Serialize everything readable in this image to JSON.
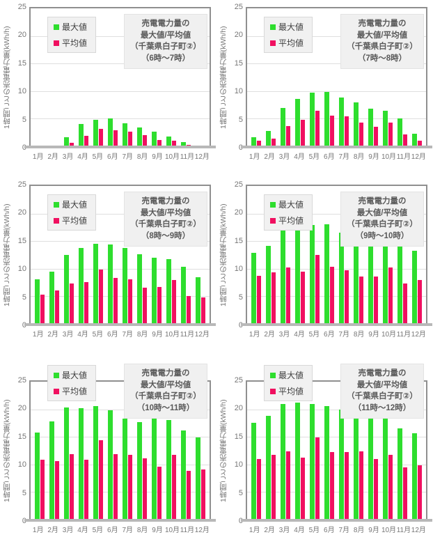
{
  "page": {
    "background": "#ffffff"
  },
  "colors": {
    "max_bar": "#2ede2e",
    "avg_bar": "#f01060",
    "gridline": "#dfdfdf",
    "plot_border": "#8f8f8f",
    "axis_baseline": "#b8b8b8",
    "tick_text": "#767676",
    "legend_text": "#3f3f3f",
    "title_text": "#595959",
    "legend_bg": "#f1f1f1",
    "title_bg": "#f0f0f0"
  },
  "legend": {
    "max_label": "最大値",
    "avg_label": "平均値"
  },
  "y_axis": {
    "title": "1時間ごとの売電電力量(kWh/h)",
    "ticks": [
      0,
      5,
      10,
      15,
      20,
      25
    ]
  },
  "chart_data": [
    {
      "type": "bar",
      "title": "売電電力量の最大値/平均値（千葉県白子町②）（6時～7時）",
      "title_lines": [
        "売電電力量の",
        "最大値/平均値",
        "（千葉県白子町②）",
        "（6時～7時）"
      ],
      "categories": [
        "1月",
        "2月",
        "3月",
        "4月",
        "5月",
        "6月",
        "7月",
        "8月",
        "9月",
        "10月",
        "11月",
        "12月"
      ],
      "series": [
        {
          "name": "最大値",
          "values": [
            0,
            0,
            1.7,
            4.0,
            4.8,
            5.0,
            4.2,
            3.4,
            2.6,
            1.8,
            0.8,
            0
          ]
        },
        {
          "name": "平均値",
          "values": [
            0,
            0,
            0.6,
            1.9,
            3.2,
            2.9,
            2.6,
            2.0,
            1.2,
            1.0,
            0.3,
            0
          ]
        }
      ],
      "ylabel": "1時間ごとの売電電力量(kWh/h)",
      "ylim": [
        0,
        25
      ],
      "grid": true,
      "legend_position": "top-left"
    },
    {
      "type": "bar",
      "title": "売電電力量の最大値/平均値（千葉県白子町②）（7時～8時）",
      "title_lines": [
        "売電電力量の",
        "最大値/平均値",
        "（千葉県白子町②）",
        "（7時～8時）"
      ],
      "categories": [
        "1月",
        "2月",
        "3月",
        "4月",
        "5月",
        "6月",
        "7月",
        "8月",
        "9月",
        "10月",
        "11月",
        "12月"
      ],
      "series": [
        {
          "name": "最大値",
          "values": [
            1.6,
            2.8,
            6.9,
            8.6,
            9.7,
            9.8,
            8.9,
            7.9,
            6.8,
            6.5,
            5.1,
            2.3
          ]
        },
        {
          "name": "平均値",
          "values": [
            1.0,
            1.4,
            3.7,
            4.8,
            6.5,
            5.6,
            5.4,
            4.3,
            3.6,
            4.3,
            2.2,
            1.0
          ]
        }
      ],
      "ylabel": "1時間ごとの売電電力量(kWh/h)",
      "ylim": [
        0,
        25
      ],
      "grid": true,
      "legend_position": "top-left"
    },
    {
      "type": "bar",
      "title": "売電電力量の最大値/平均値（千葉県白子町②）（8時～9時）",
      "title_lines": [
        "売電電力量の",
        "最大値/平均値",
        "（千葉県白子町②）",
        "（8時～9時）"
      ],
      "categories": [
        "1月",
        "2月",
        "3月",
        "4月",
        "5月",
        "6月",
        "7月",
        "8月",
        "9月",
        "10月",
        "11月",
        "12月"
      ],
      "series": [
        {
          "name": "最大値",
          "values": [
            8.1,
            9.5,
            12.5,
            13.8,
            14.5,
            14.4,
            13.8,
            12.6,
            12.0,
            11.8,
            10.3,
            8.4
          ]
        },
        {
          "name": "平均値",
          "values": [
            5.3,
            6.0,
            7.3,
            7.6,
            9.8,
            8.3,
            8.1,
            6.6,
            6.7,
            7.9,
            5.0,
            4.8
          ]
        }
      ],
      "ylabel": "1時間ごとの売電電力量(kWh/h)",
      "ylim": [
        0,
        25
      ],
      "grid": true,
      "legend_position": "top-left"
    },
    {
      "type": "bar",
      "title": "売電電力量の最大値/平均値（千葉県白子町②）（9時～10時）",
      "title_lines": [
        "売電電力量の",
        "最大値/平均値",
        "（千葉県白子町②）",
        "（9時～10時）"
      ],
      "categories": [
        "1月",
        "2月",
        "3月",
        "4月",
        "5月",
        "6月",
        "7月",
        "8月",
        "9月",
        "10月",
        "11月",
        "12月"
      ],
      "series": [
        {
          "name": "最大値",
          "values": [
            12.9,
            14.1,
            17.2,
            17.9,
            17.9,
            18.1,
            16.5,
            15.4,
            16.4,
            16.2,
            14.2,
            13.2
          ]
        },
        {
          "name": "平均値",
          "values": [
            8.7,
            9.4,
            10.2,
            9.5,
            12.5,
            10.3,
            9.7,
            8.6,
            8.6,
            10.2,
            7.3,
            7.9
          ]
        }
      ],
      "ylabel": "1時間ごとの売電電力量(kWh/h)",
      "ylim": [
        0,
        25
      ],
      "grid": true,
      "legend_position": "top-left"
    },
    {
      "type": "bar",
      "title": "売電電力量の最大値/平均値（千葉県白子町②）（10時～11時）",
      "title_lines": [
        "売電電力量の",
        "最大値/平均値",
        "（千葉県白子町②）",
        "（10時～11時）"
      ],
      "categories": [
        "1月",
        "2月",
        "3月",
        "4月",
        "5月",
        "6月",
        "7月",
        "8月",
        "9月",
        "10月",
        "11月",
        "12月"
      ],
      "series": [
        {
          "name": "最大値",
          "values": [
            15.8,
            17.8,
            20.3,
            20.2,
            20.6,
            19.8,
            18.3,
            17.7,
            18.5,
            18.1,
            16.2,
            14.9
          ]
        },
        {
          "name": "平均値",
          "values": [
            10.8,
            10.6,
            11.9,
            10.8,
            14.4,
            11.9,
            11.7,
            11.1,
            9.6,
            11.8,
            8.8,
            9.1
          ]
        }
      ],
      "ylabel": "1時間ごとの売電電力量(kWh/h)",
      "ylim": [
        0,
        25
      ],
      "grid": true,
      "legend_position": "top-left"
    },
    {
      "type": "bar",
      "title": "売電電力量の最大値/平均値（千葉県白子町②）（11時～12時）",
      "title_lines": [
        "売電電力量の",
        "最大値/平均値",
        "（千葉県白子町②）",
        "（11時～12時）"
      ],
      "categories": [
        "1月",
        "2月",
        "3月",
        "4月",
        "5月",
        "6月",
        "7月",
        "8月",
        "9月",
        "10月",
        "11月",
        "12月"
      ],
      "series": [
        {
          "name": "最大値",
          "values": [
            17.5,
            18.8,
            21.0,
            21.2,
            20.9,
            20.6,
            20.0,
            18.6,
            19.3,
            18.7,
            16.6,
            15.6
          ]
        },
        {
          "name": "平均値",
          "values": [
            11.0,
            11.8,
            12.4,
            11.3,
            14.9,
            12.2,
            12.3,
            12.4,
            11.0,
            11.8,
            9.5,
            9.8
          ]
        }
      ],
      "ylabel": "1時間ごとの売電電力量(kWh/h)",
      "ylim": [
        0,
        25
      ],
      "grid": true,
      "legend_position": "top-left"
    }
  ]
}
